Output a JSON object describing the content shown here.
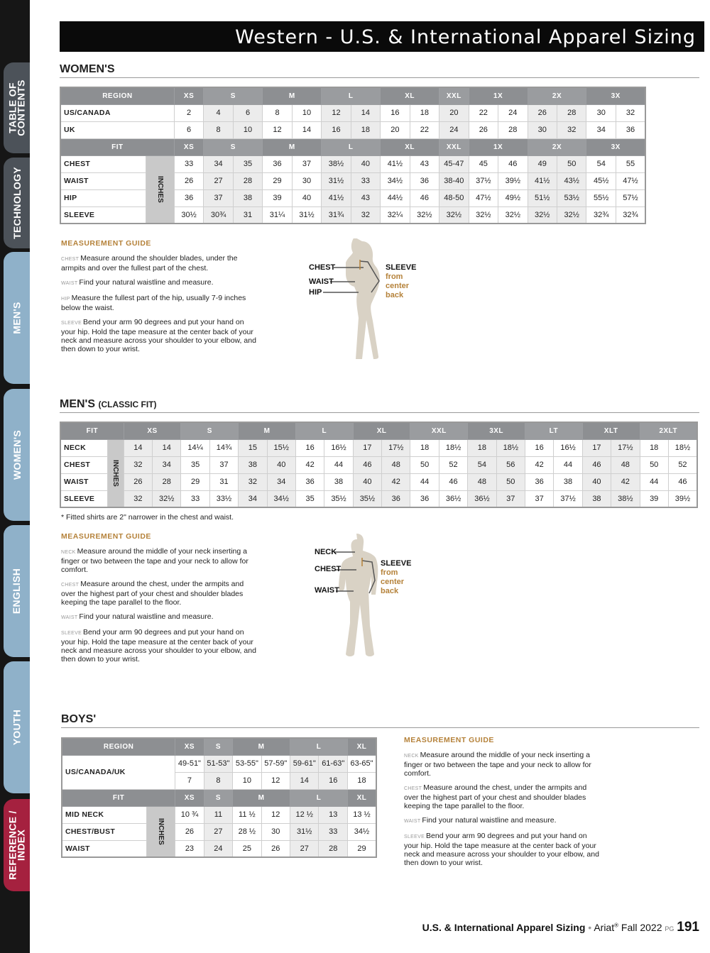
{
  "sidebar": {
    "tabs": [
      {
        "label": "TABLE OF\nCONTENTS",
        "style": "dark"
      },
      {
        "label": "TECHNOLOGY",
        "style": "dark"
      },
      {
        "label": "MEN'S",
        "style": "light"
      },
      {
        "label": "WOMEN'S",
        "style": "light"
      },
      {
        "label": "ENGLISH",
        "style": "light"
      },
      {
        "label": "YOUTH",
        "style": "light"
      },
      {
        "label": "REFERENCE /\nINDEX",
        "style": "red"
      }
    ]
  },
  "title": "Western - U.S. & International Apparel Sizing",
  "colors": {
    "accent": "#b5823a",
    "header_grey": "#8d8f92",
    "shade": "#ececec",
    "figure": "#d9d2c5",
    "reference_tab": "#a5213f",
    "section_tab": "#8fb1c9"
  },
  "women": {
    "heading": "WOMEN'S",
    "table": {
      "region_header": "REGION",
      "fit_header": "FIT",
      "unit": "INCHES",
      "groups": [
        {
          "label": "XS",
          "span": 1
        },
        {
          "label": "S",
          "span": 2
        },
        {
          "label": "M",
          "span": 2
        },
        {
          "label": "L",
          "span": 2
        },
        {
          "label": "XL",
          "span": 2
        },
        {
          "label": "XXL",
          "span": 1
        },
        {
          "label": "1X",
          "span": 2
        },
        {
          "label": "2X",
          "span": 2
        },
        {
          "label": "3X",
          "span": 2
        }
      ],
      "shaded_groups": [
        1,
        3,
        5,
        7
      ],
      "region_rows": [
        {
          "label": "US/CANADA",
          "values": [
            "2",
            "4",
            "6",
            "8",
            "10",
            "12",
            "14",
            "16",
            "18",
            "20",
            "22",
            "24",
            "26",
            "28",
            "30",
            "32"
          ]
        },
        {
          "label": "UK",
          "values": [
            "6",
            "8",
            "10",
            "12",
            "14",
            "16",
            "18",
            "20",
            "22",
            "24",
            "26",
            "28",
            "30",
            "32",
            "34",
            "36"
          ]
        }
      ],
      "fit_rows": [
        {
          "label": "CHEST",
          "values": [
            "33",
            "34",
            "35",
            "36",
            "37",
            "38½",
            "40",
            "41½",
            "43",
            "45-47",
            "45",
            "46",
            "49",
            "50",
            "54",
            "55"
          ]
        },
        {
          "label": "WAIST",
          "values": [
            "26",
            "27",
            "28",
            "29",
            "30",
            "31½",
            "33",
            "34½",
            "36",
            "38-40",
            "37½",
            "39½",
            "41½",
            "43½",
            "45½",
            "47½"
          ]
        },
        {
          "label": "HIP",
          "values": [
            "36",
            "37",
            "38",
            "39",
            "40",
            "41½",
            "43",
            "44½",
            "46",
            "48-50",
            "47½",
            "49½",
            "51½",
            "53½",
            "55½",
            "57½"
          ]
        },
        {
          "label": "SLEEVE",
          "values": [
            "30½",
            "30¾",
            "31",
            "31¼",
            "31½",
            "31¾",
            "32",
            "32¼",
            "32½",
            "32½",
            "32½",
            "32½",
            "32½",
            "32½",
            "32¾",
            "32¾"
          ]
        }
      ]
    },
    "guide": {
      "title": "MEASUREMENT GUIDE",
      "items": [
        {
          "term": "CHEST",
          "text": "Measure around the shoulder blades, under the armpits and over the fullest part of the chest."
        },
        {
          "term": "WAIST",
          "text": "Find your natural waistline and measure."
        },
        {
          "term": "HIP",
          "text": "Measure the fullest part of the hip, usually 7-9 inches below the waist."
        },
        {
          "term": "SLEEVE",
          "text": "Bend your arm 90 degrees and put your hand on your hip. Hold the tape measure at the center back of your neck and measure across your shoulder to your elbow, and then down to your wrist."
        }
      ]
    },
    "figure": {
      "labels": [
        "CHEST",
        "WAIST",
        "HIP"
      ],
      "sleeve": "SLEEVE",
      "sleeve_note": "from\ncenter\nback"
    }
  },
  "men": {
    "heading": "MEN'S",
    "subheading": "(CLASSIC FIT)",
    "table": {
      "fit_header": "FIT",
      "unit": "INCHES",
      "groups": [
        {
          "label": "XS",
          "span": 2
        },
        {
          "label": "S",
          "span": 2
        },
        {
          "label": "M",
          "span": 2
        },
        {
          "label": "L",
          "span": 2
        },
        {
          "label": "XL",
          "span": 2
        },
        {
          "label": "XXL",
          "span": 2
        },
        {
          "label": "3XL",
          "span": 2
        },
        {
          "label": "LT",
          "span": 2
        },
        {
          "label": "XLT",
          "span": 2
        },
        {
          "label": "2XLT",
          "span": 2
        }
      ],
      "shaded_groups": [
        0,
        2,
        4,
        6,
        8
      ],
      "fit_rows": [
        {
          "label": "NECK",
          "values": [
            "14",
            "14",
            "14¼",
            "14¾",
            "15",
            "15½",
            "16",
            "16½",
            "17",
            "17½",
            "18",
            "18½",
            "18",
            "18½",
            "16",
            "16½",
            "17",
            "17½",
            "18",
            "18½"
          ]
        },
        {
          "label": "CHEST",
          "values": [
            "32",
            "34",
            "35",
            "37",
            "38",
            "40",
            "42",
            "44",
            "46",
            "48",
            "50",
            "52",
            "54",
            "56",
            "42",
            "44",
            "46",
            "48",
            "50",
            "52"
          ]
        },
        {
          "label": "WAIST",
          "values": [
            "26",
            "28",
            "29",
            "31",
            "32",
            "34",
            "36",
            "38",
            "40",
            "42",
            "44",
            "46",
            "48",
            "50",
            "36",
            "38",
            "40",
            "42",
            "44",
            "46"
          ]
        },
        {
          "label": "SLEEVE",
          "values": [
            "32",
            "32½",
            "33",
            "33½",
            "34",
            "34½",
            "35",
            "35½",
            "35½",
            "36",
            "36",
            "36½",
            "36½",
            "37",
            "37",
            "37½",
            "38",
            "38½",
            "39",
            "39½"
          ]
        }
      ]
    },
    "note": "* Fitted shirts are 2\" narrower in the chest and waist.",
    "guide": {
      "title": "MEASUREMENT GUIDE",
      "items": [
        {
          "term": "NECK",
          "text": "Measure around the middle of your neck inserting a finger or two between the tape and your neck to allow for comfort."
        },
        {
          "term": "CHEST",
          "text": "Measure around the chest, under the armpits and over the highest part of your chest and shoulder blades keeping the tape parallel to the floor."
        },
        {
          "term": "WAIST",
          "text": "Find your natural waistline and measure."
        },
        {
          "term": "SLEEVE",
          "text": "Bend your arm 90 degrees and put your hand on your hip. Hold the tape measure at the center back of your neck and measure across your shoulder to your elbow, and then down to your wrist."
        }
      ]
    },
    "figure": {
      "labels": [
        "NECK",
        "CHEST",
        "WAIST"
      ],
      "sleeve": "SLEEVE",
      "sleeve_note": "from\ncenter\nback"
    }
  },
  "boys": {
    "heading": "BOYS'",
    "table": {
      "region_header": "REGION",
      "fit_header": "FIT",
      "unit": "INCHES",
      "groups": [
        {
          "label": "XS",
          "span": 1
        },
        {
          "label": "S",
          "span": 1
        },
        {
          "label": "M",
          "span": 2
        },
        {
          "label": "L",
          "span": 2
        },
        {
          "label": "XL",
          "span": 1
        }
      ],
      "shaded_groups": [
        1,
        3
      ],
      "region_label": "US/CANADA/UK",
      "heights": [
        "49-51\"",
        "51-53\"",
        "53-55\"",
        "57-59\"",
        "59-61\"",
        "61-63\"",
        "63-65\""
      ],
      "sizes": [
        "7",
        "8",
        "10",
        "12",
        "14",
        "16",
        "18"
      ],
      "fit_rows": [
        {
          "label": "MID NECK",
          "values": [
            "10 ¾",
            "11",
            "11 ½",
            "12",
            "12 ½",
            "13",
            "13 ½"
          ]
        },
        {
          "label": "CHEST/BUST",
          "values": [
            "26",
            "27",
            "28 ½",
            "30",
            "31½",
            "33",
            "34½"
          ]
        },
        {
          "label": "WAIST",
          "values": [
            "23",
            "24",
            "25",
            "26",
            "27",
            "28",
            "29"
          ]
        }
      ]
    },
    "guide": {
      "title": "MEASUREMENT GUIDE",
      "items": [
        {
          "term": "NECK",
          "text": "Measure around the middle of your neck inserting a finger or two between the tape and your neck to allow for comfort."
        },
        {
          "term": "CHEST",
          "text": "Measure around the chest, under the armpits and over the highest part of your chest and shoulder blades keeping the tape parallel to the floor."
        },
        {
          "term": "WAIST",
          "text": "Find your natural waistline and measure."
        },
        {
          "term": "SLEEVE",
          "text": "Bend your arm 90 degrees and put your hand on your hip. Hold the tape measure at the center back of your neck and measure across your shoulder to your elbow, and then down to your wrist."
        }
      ]
    }
  },
  "footer": {
    "section": "U.S. & International Apparel Sizing",
    "separator": "•",
    "brand": "Ariat",
    "registered": "®",
    "season": "Fall 2022",
    "pg_label": "PG",
    "page": "191"
  }
}
